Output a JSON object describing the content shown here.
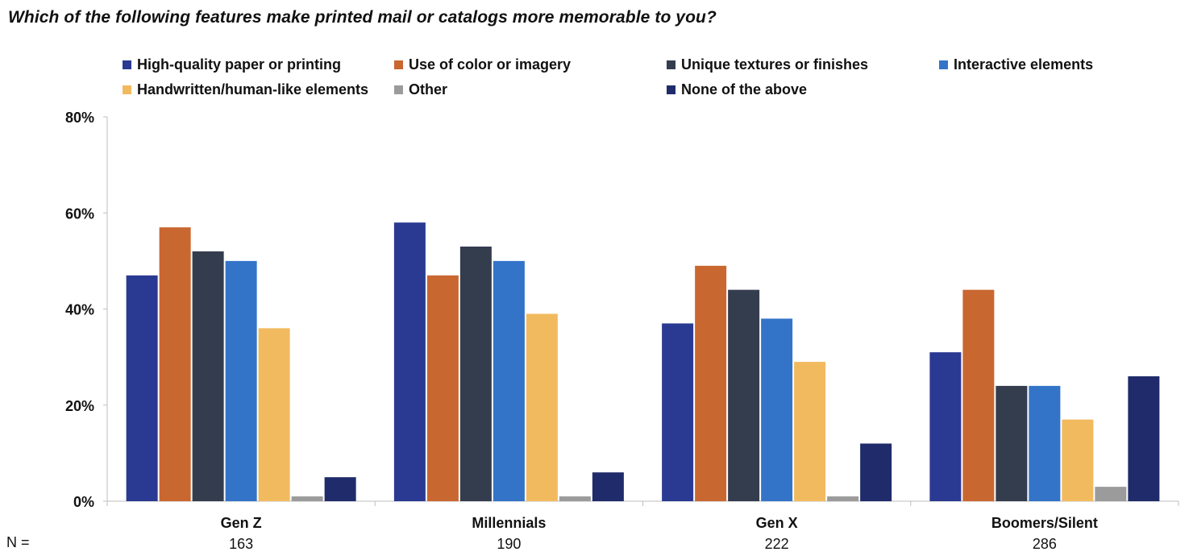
{
  "title": "Which of the following features make printed mail or catalogs more memorable to you?",
  "n_label": "N =",
  "chart_data": {
    "type": "bar",
    "title": "Which of the following features make printed mail or catalogs more memorable to you?",
    "categories": [
      "Gen Z",
      "Millennials",
      "Gen X",
      "Boomers/Silent"
    ],
    "sample_sizes": [
      "163",
      "190",
      "222",
      "286"
    ],
    "series": [
      {
        "name": "High-quality paper or printing",
        "color": "#2a3a92",
        "values": [
          47,
          58,
          37,
          31
        ]
      },
      {
        "name": "Use of color or imagery",
        "color": "#c96730",
        "values": [
          57,
          47,
          49,
          44
        ]
      },
      {
        "name": "Unique textures or finishes",
        "color": "#343d4e",
        "values": [
          52,
          53,
          44,
          24
        ]
      },
      {
        "name": "Interactive elements",
        "color": "#3374c8",
        "values": [
          50,
          50,
          38,
          24
        ]
      },
      {
        "name": "Handwritten/human-like elements",
        "color": "#f2ba5f",
        "values": [
          36,
          39,
          29,
          17
        ]
      },
      {
        "name": "Other",
        "color": "#9b9b9b",
        "values": [
          1,
          1,
          1,
          3
        ]
      },
      {
        "name": "None of the above",
        "color": "#1f2b6a",
        "values": [
          5,
          6,
          12,
          26
        ]
      }
    ],
    "y_ticks": [
      "0%",
      "20%",
      "40%",
      "60%",
      "80%"
    ],
    "ylim": [
      0,
      80
    ],
    "unit": "%",
    "grid": false,
    "legend_position": "top"
  }
}
